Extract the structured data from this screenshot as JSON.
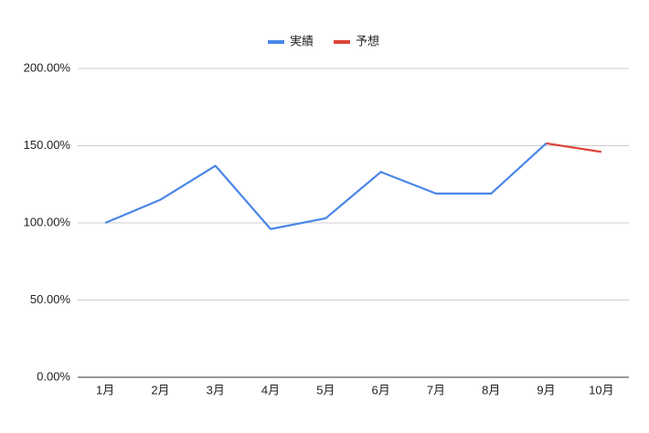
{
  "chart_data": {
    "type": "line",
    "categories": [
      "1月",
      "2月",
      "3月",
      "4月",
      "5月",
      "6月",
      "7月",
      "8月",
      "9月",
      "10月"
    ],
    "series": [
      {
        "name": "実績",
        "color": "#4a86e8",
        "values": [
          100,
          115,
          137,
          96,
          103,
          133,
          119,
          119,
          151.5,
          null
        ]
      },
      {
        "name": "予想",
        "color": "#db4437",
        "values": [
          null,
          null,
          null,
          null,
          null,
          null,
          null,
          null,
          151.5,
          146
        ]
      }
    ],
    "ylim": [
      0,
      200
    ],
    "yticks": [
      {
        "value": 0,
        "label": "0.00%"
      },
      {
        "value": 50,
        "label": "50.00%"
      },
      {
        "value": 100,
        "label": "100.00%"
      },
      {
        "value": 150,
        "label": "150.00%"
      },
      {
        "value": 200,
        "label": "200.00%"
      }
    ],
    "grid": true,
    "legend": "top"
  }
}
